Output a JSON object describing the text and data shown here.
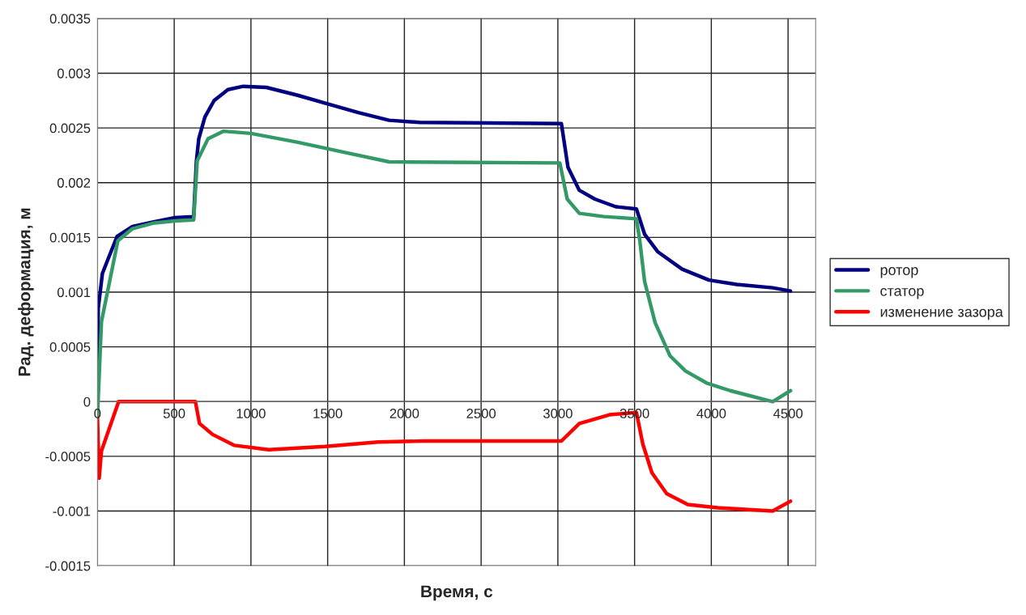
{
  "chart_data": {
    "type": "line",
    "xlabel": "Время, с",
    "ylabel": "Рад. деформация, м",
    "xlim": [
      0,
      4680
    ],
    "xticks": [
      0,
      500,
      1000,
      1500,
      2000,
      2500,
      3000,
      3500,
      4000,
      4500
    ],
    "ylim": [
      -0.0015,
      0.0035
    ],
    "yticks": [
      {
        "value": -0.0015,
        "label": "-0.0015"
      },
      {
        "value": -0.001,
        "label": "-0.001"
      },
      {
        "value": -0.0005,
        "label": "-0.0005"
      },
      {
        "value": 0,
        "label": "0"
      },
      {
        "value": 0.0005,
        "label": "0.0005"
      },
      {
        "value": 0.001,
        "label": "0.001"
      },
      {
        "value": 0.0015,
        "label": "0.0015"
      },
      {
        "value": 0.002,
        "label": "0.002"
      },
      {
        "value": 0.0025,
        "label": "0.0025"
      },
      {
        "value": 0.003,
        "label": "0.003"
      },
      {
        "value": 0.0035,
        "label": "0.0035"
      }
    ],
    "grid": true,
    "legend": "right",
    "series": [
      {
        "name": "ротор",
        "color": "#000080",
        "x": [
          0,
          5,
          32,
          74,
          128,
          228,
          361,
          505,
          627,
          645,
          660,
          700,
          760,
          850,
          950,
          1100,
          1300,
          1500,
          1700,
          1900,
          2100,
          3023,
          3066,
          3140,
          3241,
          3378,
          3512,
          3565,
          3650,
          3810,
          3985,
          4165,
          4400,
          4516
        ],
        "values": [
          0.0002,
          0.00085,
          0.00117,
          0.00132,
          0.00151,
          0.0016,
          0.00164,
          0.00168,
          0.00169,
          0.0022,
          0.0024,
          0.0026,
          0.00275,
          0.00285,
          0.00288,
          0.00287,
          0.0028,
          0.00272,
          0.00264,
          0.00257,
          0.00255,
          0.00254,
          0.00214,
          0.00193,
          0.00185,
          0.00178,
          0.00176,
          0.00153,
          0.00137,
          0.00121,
          0.00111,
          0.00107,
          0.00104,
          0.00101
        ]
      },
      {
        "name": "статор",
        "color": "#339966",
        "x": [
          0,
          26,
          133,
          228,
          361,
          505,
          627,
          650,
          720,
          820,
          1000,
          1300,
          1600,
          1900,
          3013,
          3061,
          3140,
          3299,
          3512,
          3533,
          3565,
          3634,
          3730,
          3831,
          3969,
          4123,
          4400,
          4516
        ],
        "values": [
          -0.00013,
          0.00073,
          0.00147,
          0.00158,
          0.00163,
          0.00165,
          0.00166,
          0.0022,
          0.0024,
          0.00247,
          0.00245,
          0.00237,
          0.00228,
          0.00219,
          0.00218,
          0.00185,
          0.00172,
          0.00169,
          0.00167,
          0.00148,
          0.0011,
          0.00072,
          0.00042,
          0.00028,
          0.00017,
          0.0001,
          0,
          0.0001
        ]
      },
      {
        "name": "изменение зазора",
        "color": "#ff0000",
        "x": [
          0,
          11,
          26,
          138,
          228,
          361,
          505,
          638,
          665,
          750,
          893,
          1116,
          1483,
          1828,
          2131,
          3023,
          3140,
          3336,
          3512,
          3554,
          3613,
          3709,
          3847,
          4043,
          4400,
          4516
        ],
        "values": [
          -0.00015,
          -0.0007,
          -0.00045,
          0,
          0,
          0,
          0,
          0,
          -0.0002,
          -0.0003,
          -0.0004,
          -0.00044,
          -0.00041,
          -0.00037,
          -0.00036,
          -0.00036,
          -0.0002,
          -0.00012,
          -0.0001,
          -0.00039,
          -0.00065,
          -0.00084,
          -0.00094,
          -0.00097,
          -0.001,
          -0.00091
        ]
      }
    ]
  }
}
